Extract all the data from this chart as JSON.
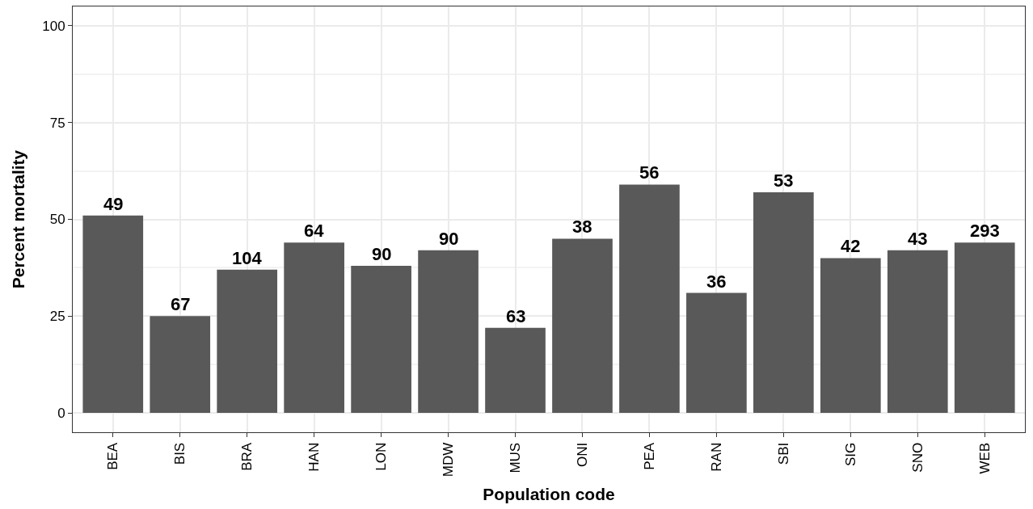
{
  "chart_data": {
    "type": "bar",
    "xlabel": "Population code",
    "ylabel": "Percent mortality",
    "categories": [
      "BEA",
      "BIS",
      "BRA",
      "HAN",
      "LON",
      "MDW",
      "MUS",
      "ONI",
      "PEA",
      "RAN",
      "SBI",
      "SIG",
      "SNO",
      "WEB"
    ],
    "values": [
      51,
      25,
      37,
      44,
      38,
      42,
      22,
      45,
      59,
      31,
      57,
      40,
      42,
      44
    ],
    "annotations": [
      {
        "text": "49",
        "x": "BEA",
        "y": 51
      },
      {
        "text": "67",
        "x": "BIS",
        "y": 25
      },
      {
        "text": "104",
        "x": "BRA",
        "y": 37
      },
      {
        "text": "64",
        "x": "HAN",
        "y": 44
      },
      {
        "text": "90",
        "x": "LON",
        "y": 38
      },
      {
        "text": "90",
        "x": "MDW",
        "y": 42
      },
      {
        "text": "63",
        "x": "MUS",
        "y": 22
      },
      {
        "text": "38",
        "x": "ONI",
        "y": 45
      },
      {
        "text": "56",
        "x": "PEA",
        "y": 59
      },
      {
        "text": "36",
        "x": "RAN",
        "y": 31
      },
      {
        "text": "53",
        "x": "SBI",
        "y": 57
      },
      {
        "text": "42",
        "x": "SIG",
        "y": 40
      },
      {
        "text": "43",
        "x": "SNO",
        "y": 42
      },
      {
        "text": "293",
        "x": "WEB",
        "y": 44
      }
    ],
    "color": "#595959",
    "ylim": [
      -5,
      105
    ],
    "yticks": [
      0,
      25,
      50,
      75,
      100
    ],
    "grid": true,
    "legend": false
  }
}
